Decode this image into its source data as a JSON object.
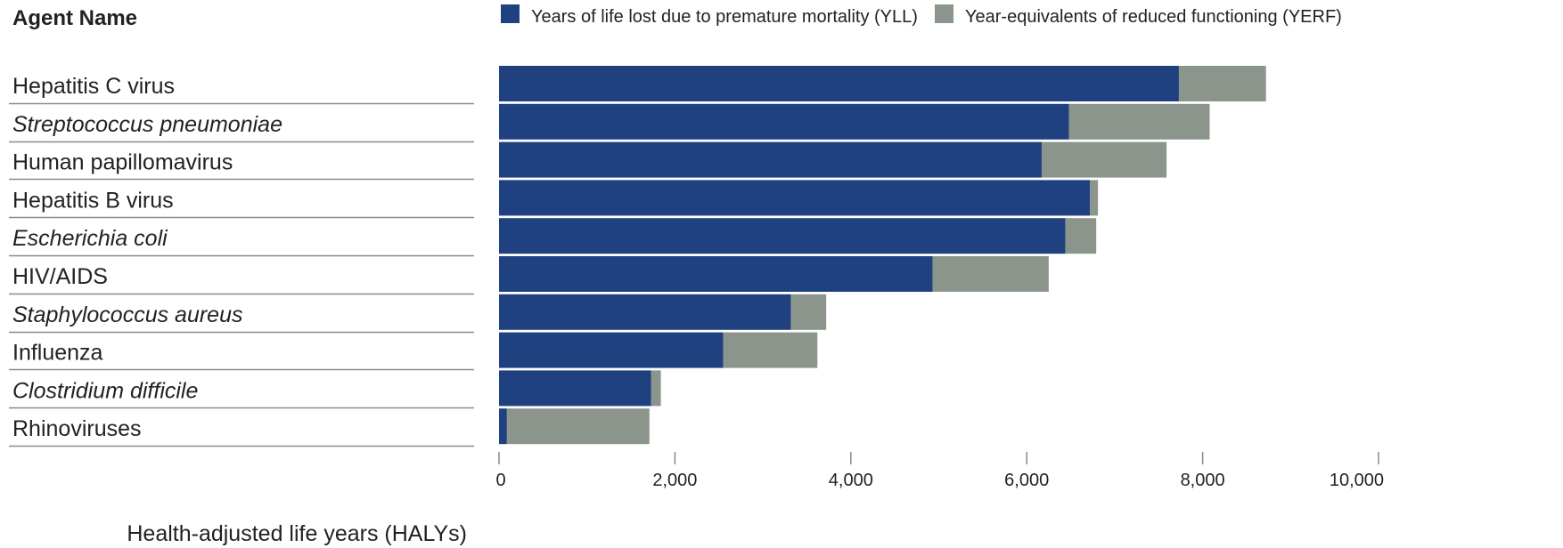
{
  "chart_data": {
    "type": "bar",
    "orientation": "horizontal",
    "stacked": true,
    "category_header": "Agent Name",
    "xlabel": "Health-adjusted life years (HALYs)",
    "xlim": [
      0,
      10000
    ],
    "xticks": [
      0,
      2000,
      4000,
      6000,
      8000,
      10000
    ],
    "xtick_labels": [
      "0",
      "2,000",
      "4,000",
      "6,000",
      "8,000",
      "10,000"
    ],
    "legend_position": "top",
    "categories": [
      "Hepatitis C virus",
      "Streptococcus pneumoniae",
      "Human papillomavirus",
      "Hepatitis B virus",
      "Escherichia coli",
      "HIV/AIDS",
      "Staphylococcus aureus",
      "Influenza",
      "Clostridium difficile",
      "Rhinoviruses"
    ],
    "italic_categories": [
      false,
      true,
      false,
      false,
      true,
      false,
      true,
      false,
      true,
      false
    ],
    "series": [
      {
        "name": "Years of life lost due to premature mortality (YLL)",
        "color": "#1f4180",
        "values": [
          7730,
          6480,
          6170,
          6720,
          6440,
          4930,
          3320,
          2550,
          1730,
          90
        ]
      },
      {
        "name": "Year-equivalents of reduced functioning (YERF)",
        "color": "#8c958b",
        "values": [
          990,
          1600,
          1420,
          90,
          350,
          1320,
          400,
          1070,
          110,
          1620
        ]
      }
    ]
  }
}
